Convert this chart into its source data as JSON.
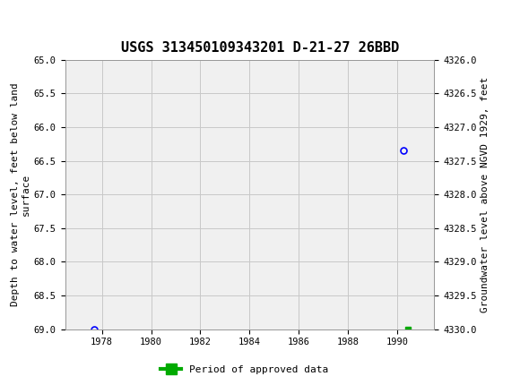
{
  "title": "USGS 313450109343201 D-21-27 26BBD",
  "title_fontsize": 11,
  "header_color": "#006644",
  "background_color": "#ffffff",
  "plot_bg_color": "#f0f0f0",
  "grid_color": "#c8c8c8",
  "left_ylabel": "Depth to water level, feet below land\nsurface",
  "right_ylabel": "Groundwater level above NGVD 1929, feet",
  "ylabel_fontsize": 8,
  "xlim": [
    1976.5,
    1991.5
  ],
  "ylim_left": [
    65.0,
    69.0
  ],
  "ylim_right_top": 4330.0,
  "ylim_right_bottom": 4326.0,
  "left_yticks": [
    65.0,
    65.5,
    66.0,
    66.5,
    67.0,
    67.5,
    68.0,
    68.5,
    69.0
  ],
  "right_yticks": [
    4330.0,
    4329.5,
    4329.0,
    4328.5,
    4328.0,
    4327.5,
    4327.0,
    4326.5,
    4326.0
  ],
  "xticks": [
    1978,
    1980,
    1982,
    1984,
    1986,
    1988,
    1990
  ],
  "blue_points_x": [
    1977.7,
    1990.25
  ],
  "blue_points_y": [
    69.0,
    66.35
  ],
  "green_points_x": [
    1990.45
  ],
  "green_points_y": [
    69.0
  ],
  "legend_label": "Period of approved data",
  "legend_color": "#00aa00",
  "font_family": "monospace"
}
